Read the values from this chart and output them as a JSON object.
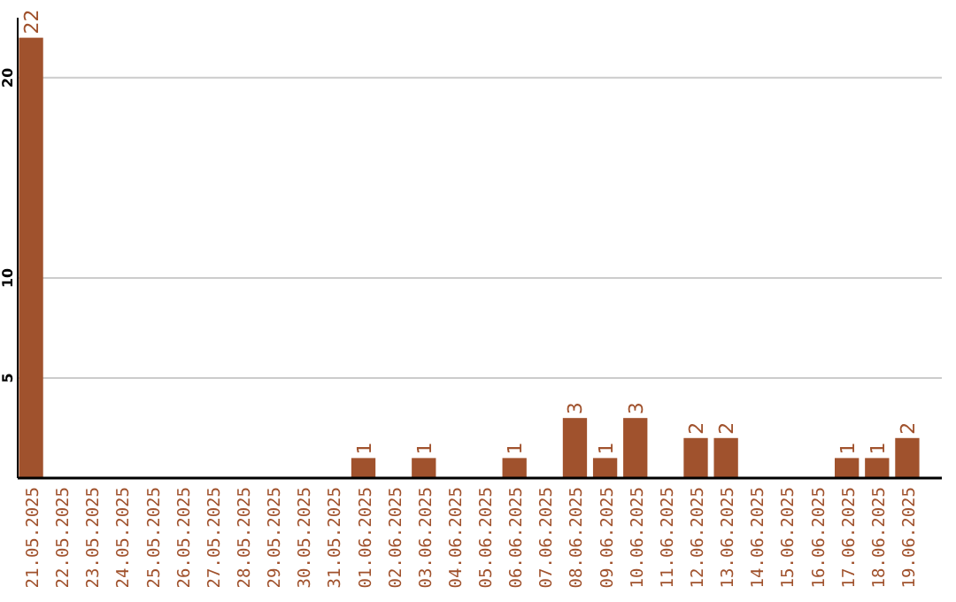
{
  "chart_data": {
    "type": "bar",
    "categories": [
      "21.05.2025",
      "22.05.2025",
      "23.05.2025",
      "24.05.2025",
      "25.05.2025",
      "26.05.2025",
      "27.05.2025",
      "28.05.2025",
      "29.05.2025",
      "30.05.2025",
      "31.05.2025",
      "01.06.2025",
      "02.06.2025",
      "03.06.2025",
      "04.06.2025",
      "05.06.2025",
      "06.06.2025",
      "07.06.2025",
      "08.06.2025",
      "09.06.2025",
      "10.06.2025",
      "11.06.2025",
      "12.06.2025",
      "13.06.2025",
      "14.06.2025",
      "15.06.2025",
      "16.06.2025",
      "17.06.2025",
      "18.06.2025",
      "19.06.2025"
    ],
    "values": [
      22,
      0,
      0,
      0,
      0,
      0,
      0,
      0,
      0,
      0,
      0,
      1,
      0,
      1,
      0,
      0,
      1,
      0,
      3,
      1,
      3,
      0,
      2,
      2,
      0,
      0,
      0,
      1,
      1,
      2
    ],
    "value_labels": [
      "22",
      null,
      null,
      null,
      null,
      null,
      null,
      null,
      null,
      null,
      null,
      "1",
      null,
      "1",
      null,
      null,
      "1",
      null,
      "3",
      "1",
      "3",
      null,
      "2",
      "2",
      null,
      null,
      null,
      "1",
      "1",
      "2"
    ],
    "color": "#a0522d",
    "ylim": [
      0,
      23
    ],
    "yticks": [
      5,
      10,
      20
    ],
    "grid": "y"
  }
}
